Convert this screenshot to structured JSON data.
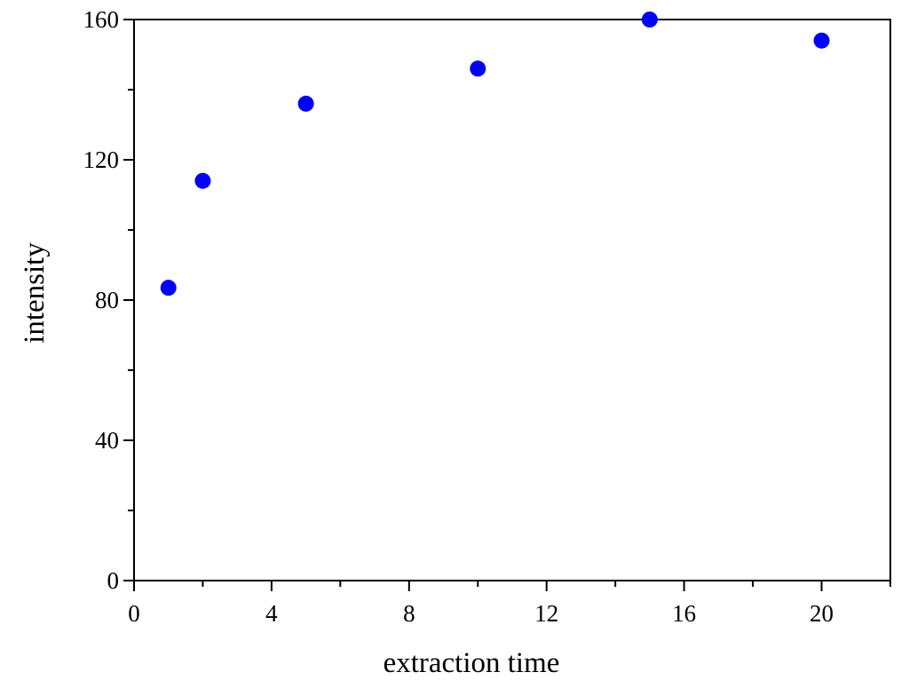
{
  "chart_data": {
    "type": "scatter",
    "xlabel": "extraction time",
    "ylabel": "intensity",
    "xlim": [
      0,
      22
    ],
    "ylim": [
      0,
      160
    ],
    "x_ticks_major": [
      0,
      4,
      8,
      12,
      16,
      20
    ],
    "x_ticks_minor": [
      2,
      6,
      10,
      14,
      18,
      22
    ],
    "x_tick_labels": [
      "0",
      "4",
      "8",
      "12",
      "16",
      "20"
    ],
    "y_ticks_major": [
      0,
      40,
      80,
      120,
      160
    ],
    "y_ticks_minor": [
      20,
      60,
      100,
      140
    ],
    "y_tick_labels": [
      "0",
      "40",
      "80",
      "120",
      "160"
    ],
    "grid": false,
    "series": [
      {
        "color": "#0000ff",
        "marker": "circle",
        "x": [
          1,
          2,
          5,
          10,
          15,
          20
        ],
        "y": [
          83.5,
          114,
          136,
          146,
          160,
          154
        ]
      }
    ]
  }
}
